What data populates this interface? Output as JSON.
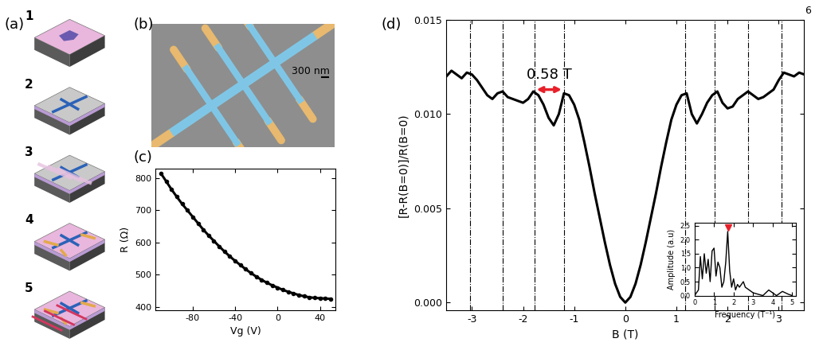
{
  "page_number": "6",
  "panel_a": {
    "label": "(a)",
    "steps": [
      "1",
      "2",
      "3",
      "4",
      "5"
    ]
  },
  "panel_b": {
    "label": "(b)",
    "scale_bar": "300 nm"
  },
  "chart_data": [
    {
      "type": "line",
      "title": "(c)",
      "x_label": "Vg (V)",
      "y_label": "R (Ω)",
      "x": [
        -110,
        -105,
        -100,
        -95,
        -90,
        -85,
        -80,
        -75,
        -70,
        -65,
        -60,
        -55,
        -50,
        -45,
        -40,
        -35,
        -30,
        -25,
        -20,
        -15,
        -10,
        -5,
        0,
        5,
        10,
        15,
        20,
        25,
        30,
        35,
        40,
        45,
        50
      ],
      "values": [
        815,
        790,
        765,
        742,
        720,
        700,
        680,
        660,
        640,
        622,
        605,
        588,
        572,
        557,
        543,
        530,
        517,
        505,
        494,
        484,
        475,
        467,
        460,
        453,
        447,
        442,
        437,
        433,
        430,
        428,
        427,
        426,
        425
      ],
      "color": "#000000",
      "marker": "o",
      "line_style": "solid",
      "grid": false,
      "xlim": [
        -115,
        55
      ],
      "xticks": [
        -80,
        -40,
        0,
        40
      ],
      "ylim": [
        390,
        830
      ],
      "yticks": [
        400,
        500,
        600,
        700,
        800
      ]
    },
    {
      "type": "line",
      "title": "(d)",
      "x_label": "B (T)",
      "y_label": "[R-R(B=0)]/R(B=0)",
      "x": [
        -3.5,
        -3.4,
        -3.3,
        -3.2,
        -3.1,
        -3.0,
        -2.9,
        -2.8,
        -2.7,
        -2.6,
        -2.5,
        -2.4,
        -2.3,
        -2.2,
        -2.1,
        -2.0,
        -1.9,
        -1.8,
        -1.7,
        -1.6,
        -1.5,
        -1.4,
        -1.3,
        -1.2,
        -1.1,
        -1.0,
        -0.9,
        -0.8,
        -0.7,
        -0.6,
        -0.5,
        -0.4,
        -0.3,
        -0.2,
        -0.1,
        0.0,
        0.1,
        0.2,
        0.3,
        0.4,
        0.5,
        0.6,
        0.7,
        0.8,
        0.9,
        1.0,
        1.1,
        1.2,
        1.3,
        1.4,
        1.5,
        1.6,
        1.7,
        1.8,
        1.9,
        2.0,
        2.1,
        2.2,
        2.3,
        2.4,
        2.5,
        2.6,
        2.7,
        2.8,
        2.9,
        3.0,
        3.1,
        3.2,
        3.3,
        3.4,
        3.5
      ],
      "values": [
        0.012,
        0.0123,
        0.0121,
        0.0119,
        0.0122,
        0.0121,
        0.0118,
        0.0114,
        0.011,
        0.0108,
        0.0111,
        0.0112,
        0.0109,
        0.0108,
        0.0107,
        0.0106,
        0.0108,
        0.0112,
        0.011,
        0.0105,
        0.0098,
        0.0094,
        0.01,
        0.0111,
        0.011,
        0.0105,
        0.0097,
        0.0085,
        0.0072,
        0.0058,
        0.0045,
        0.0032,
        0.002,
        0.001,
        0.0003,
        0.0,
        0.0003,
        0.001,
        0.002,
        0.0032,
        0.0045,
        0.0058,
        0.0072,
        0.0085,
        0.0097,
        0.0105,
        0.011,
        0.0111,
        0.01,
        0.0095,
        0.01,
        0.0106,
        0.011,
        0.0112,
        0.0106,
        0.0103,
        0.0104,
        0.0108,
        0.011,
        0.0112,
        0.011,
        0.0108,
        0.0109,
        0.0111,
        0.0113,
        0.0118,
        0.0122,
        0.0121,
        0.012,
        0.0122,
        0.0121
      ],
      "color": "#000000",
      "line_style": "solid",
      "grid": false,
      "xlim": [
        -3.5,
        3.5
      ],
      "xticks": [
        -3,
        -2,
        -1,
        0,
        1,
        2,
        3
      ],
      "ylim": [
        -0.0004,
        0.015
      ],
      "yticks": [
        {
          "value": 0,
          "label": "0.000"
        },
        0.005,
        {
          "value": 0.01,
          "label": "0.010"
        },
        0.015
      ],
      "vlines": [
        -3.03,
        -2.4,
        -1.78,
        -1.2,
        1.17,
        1.75,
        2.4,
        3.05
      ],
      "vline_style": "dashdot",
      "annotations": [
        {
          "text": "0.58 T",
          "x_from": -1.78,
          "x_to": -1.2,
          "y": 0.0113,
          "color": "#e8202a"
        }
      ]
    },
    {
      "type": "line",
      "x_label": "Frequency (T⁻¹)",
      "y_label": "Amplitude (a.u)",
      "x": [
        0.0,
        0.1,
        0.2,
        0.3,
        0.4,
        0.5,
        0.6,
        0.7,
        0.8,
        0.9,
        1.0,
        1.1,
        1.2,
        1.3,
        1.4,
        1.5,
        1.6,
        1.7,
        1.8,
        1.9,
        2.0,
        2.1,
        2.2,
        2.3,
        2.5,
        2.6,
        2.8,
        3.0,
        3.5,
        3.8,
        4.0,
        4.2,
        4.5,
        4.8,
        5.0
      ],
      "values": [
        0.0,
        0.1,
        0.2,
        1.4,
        0.6,
        1.5,
        0.8,
        1.3,
        0.5,
        1.6,
        1.7,
        0.7,
        1.2,
        1.0,
        0.3,
        0.5,
        1.2,
        2.3,
        0.9,
        0.3,
        0.6,
        0.2,
        0.4,
        0.3,
        0.5,
        0.3,
        0.2,
        0.1,
        0.0,
        0.2,
        0.1,
        0.0,
        0.15,
        0.05,
        0.0
      ],
      "color": "#000000",
      "line_style": "solid",
      "grid": false,
      "xlim": [
        0,
        5.2
      ],
      "xticks": [
        0,
        1,
        2,
        3,
        4,
        5
      ],
      "ylim": [
        0,
        2.6
      ],
      "yticks": [
        {
          "value": 0,
          "label": "0.0"
        },
        0.5,
        {
          "value": 1,
          "label": "1.0"
        },
        1.5,
        {
          "value": 2,
          "label": "2.0"
        },
        2.5
      ],
      "annotations": [
        {
          "x": 1.73,
          "y": 2.45,
          "marker": "v",
          "color": "#e8202a"
        }
      ]
    }
  ]
}
